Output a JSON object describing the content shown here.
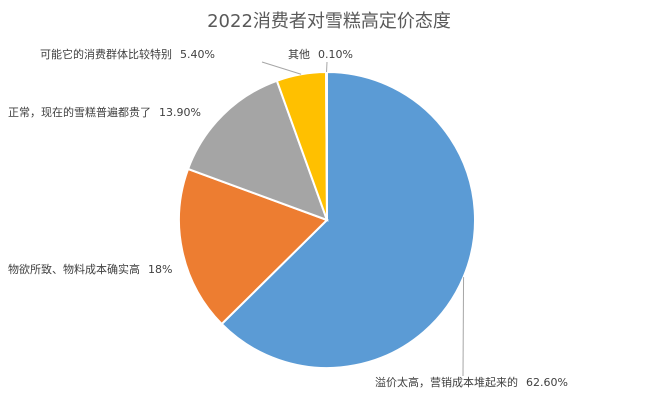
{
  "chart_data": {
    "type": "pie",
    "title": "2022消费者对雪糕高定价态度",
    "categories": [
      "溢价太高，营销成本堆起来的",
      "物欲所致、物料成本确实高",
      "正常，现在的雪糕普遍都贵了",
      "可能它的消费群体比较特别",
      "其他"
    ],
    "values": [
      62.6,
      18,
      13.9,
      5.4,
      0.1
    ],
    "value_labels": [
      "62.60%",
      "18%",
      "13.90%",
      "5.40%",
      "0.10%"
    ],
    "colors": [
      "#5b9bd5",
      "#ed7d31",
      "#a5a5a5",
      "#ffc000",
      "#4472c4"
    ]
  }
}
